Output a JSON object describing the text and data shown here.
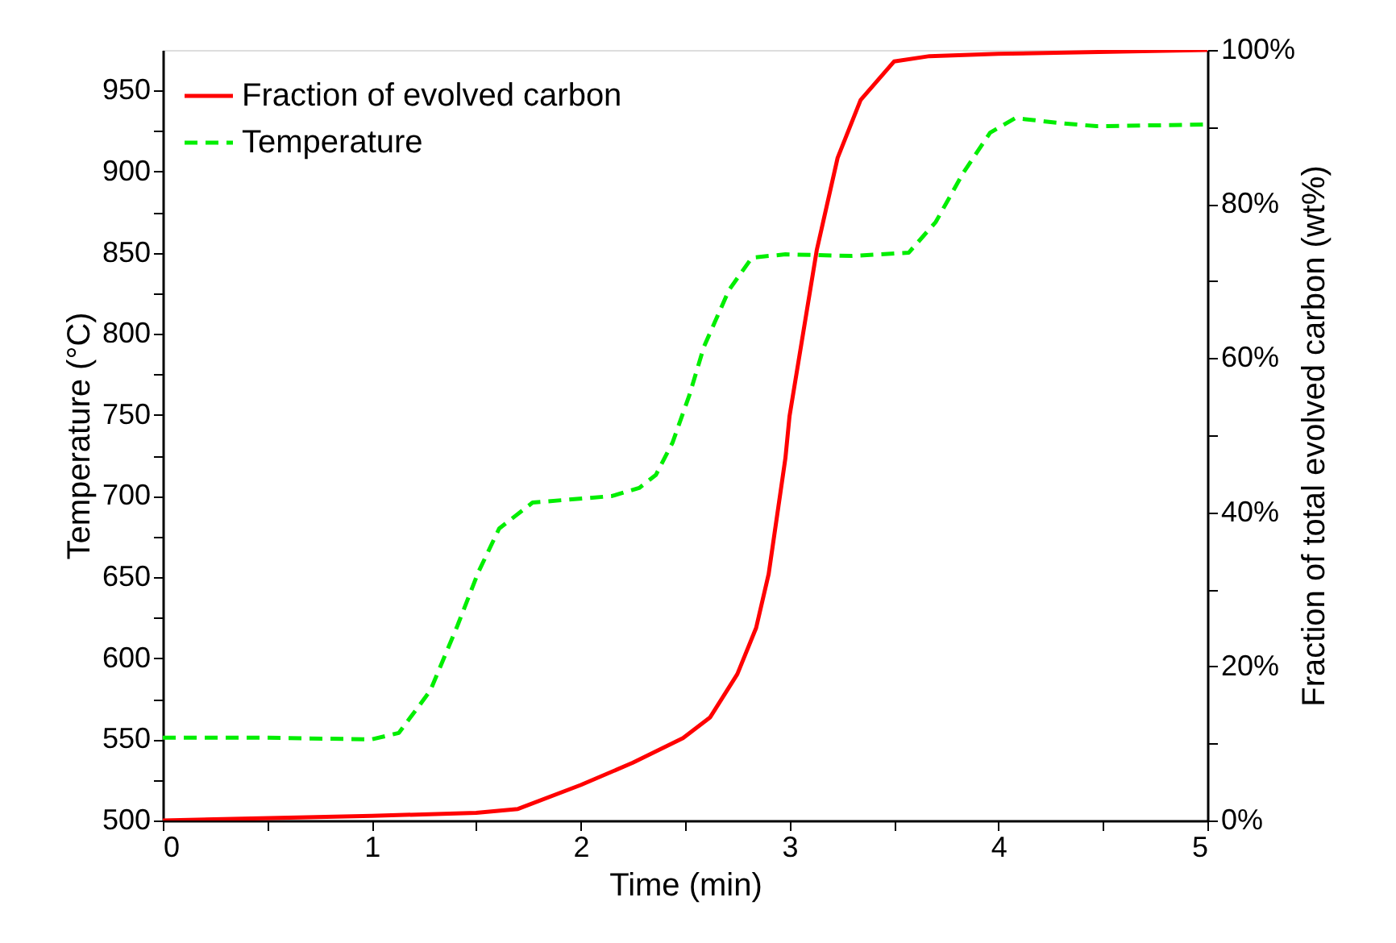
{
  "chart_data": {
    "type": "line",
    "xlabel": "Time (min)",
    "ylabel": "Temperature (°C)",
    "y2label": "Fraction of total evolved carbon (wt%)",
    "xlim": [
      0,
      5
    ],
    "xticks": [
      0,
      {
        "value": 0.5,
        "label": null
      },
      1,
      {
        "value": 1.5,
        "label": null
      },
      2,
      {
        "value": 2.5,
        "label": null
      },
      3,
      {
        "value": 3.5,
        "label": null
      },
      4,
      {
        "value": 4.5,
        "label": null
      },
      5
    ],
    "ylim": [
      500,
      975
    ],
    "yticks": [
      500,
      {
        "value": 525,
        "label": null
      },
      550,
      {
        "value": 575,
        "label": null
      },
      600,
      {
        "value": 625,
        "label": null
      },
      650,
      {
        "value": 675,
        "label": null
      },
      700,
      {
        "value": 725,
        "label": null
      },
      750,
      {
        "value": 775,
        "label": null
      },
      800,
      {
        "value": 825,
        "label": null
      },
      850,
      {
        "value": 875,
        "label": null
      },
      900,
      {
        "value": 925,
        "label": null
      },
      950
    ],
    "y2lim": [
      0,
      100
    ],
    "y2ticks": [
      {
        "value": 0,
        "label": "0%"
      },
      {
        "value": 10,
        "label": null
      },
      {
        "value": 20,
        "label": "20%"
      },
      {
        "value": 30,
        "label": null
      },
      {
        "value": 40,
        "label": "40%"
      },
      {
        "value": 50,
        "label": null
      },
      {
        "value": 60,
        "label": "60%"
      },
      {
        "value": 70,
        "label": null
      },
      {
        "value": 80,
        "label": "80%"
      },
      {
        "value": 90,
        "label": null
      },
      {
        "value": 100,
        "label": "100%"
      }
    ],
    "grid": false,
    "legend": "top left",
    "series": [
      {
        "name": "Fraction of evolved carbon",
        "color": "#ff0000",
        "axis": "y2",
        "line_style": "solid",
        "x": [
          0,
          1.0,
          1.5,
          1.7,
          2.0,
          2.25,
          2.49,
          2.62,
          2.75,
          2.84,
          2.9,
          2.98,
          3.0,
          3.13,
          3.23,
          3.34,
          3.5,
          3.67,
          4.0,
          5.0
        ],
        "values": [
          0,
          0.6,
          1.0,
          1.5,
          4.6,
          7.5,
          10.7,
          13.4,
          19,
          25,
          32,
          47,
          52.5,
          74,
          86,
          93.5,
          98.5,
          99.2,
          99.5,
          100
        ]
      },
      {
        "name": "Temperature",
        "color": "#00ee00",
        "line_style": "dashed",
        "x": [
          0,
          0.5,
          1.0,
          1.13,
          1.28,
          1.41,
          1.51,
          1.61,
          1.77,
          2.15,
          2.28,
          2.36,
          2.44,
          2.52,
          2.59,
          2.71,
          2.82,
          2.98,
          3.3,
          3.57,
          3.7,
          3.83,
          3.96,
          4.08,
          4.29,
          4.47,
          4.98
        ],
        "values": [
          551,
          551,
          550,
          554,
          580,
          620,
          653,
          680,
          696,
          700,
          705,
          713,
          733,
          762,
          792,
          827,
          847,
          849,
          848,
          850,
          869,
          899,
          924,
          933,
          930,
          928,
          929
        ]
      }
    ]
  }
}
